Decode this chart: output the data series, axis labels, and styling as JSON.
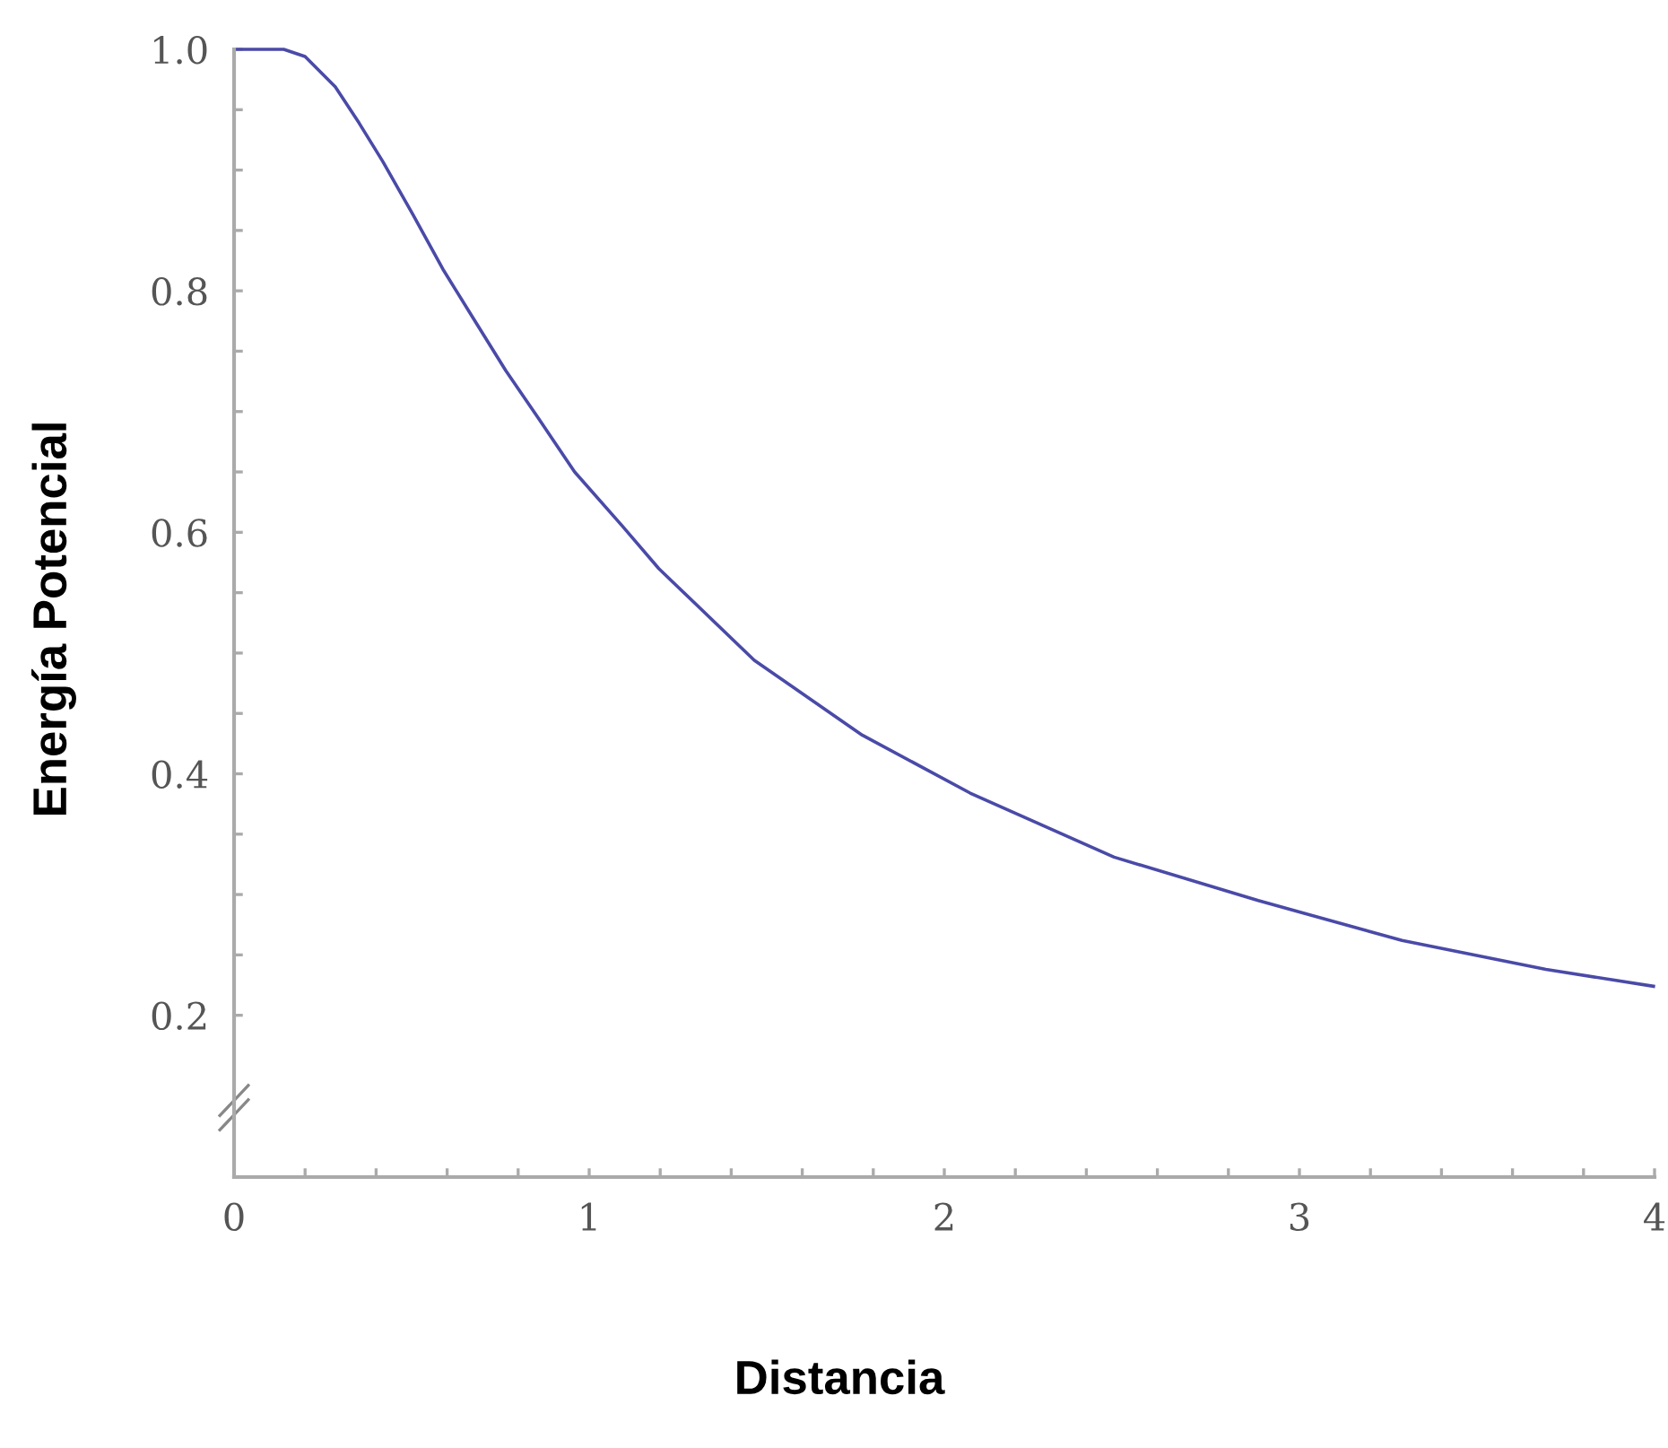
{
  "chart_data": {
    "type": "line",
    "xlabel": "Distancia",
    "ylabel": "Energía Potencial",
    "x": [
      0,
      0.14,
      0.2,
      0.285,
      0.352,
      0.419,
      0.504,
      0.588,
      0.672,
      0.765,
      0.858,
      0.959,
      1.094,
      1.196,
      1.465,
      1.769,
      2.073,
      2.478,
      2.884,
      3.289,
      3.694,
      3.997
    ],
    "series": [
      {
        "color": "#4a4aa8",
        "values": [
          1.0,
          1.0,
          0.994,
          0.969,
          0.939,
          0.907,
          0.863,
          0.818,
          0.778,
          0.734,
          0.694,
          0.65,
          0.605,
          0.57,
          0.494,
          0.432,
          0.384,
          0.331,
          0.295,
          0.262,
          0.238,
          0.224
        ]
      }
    ],
    "xlim": [
      0,
      4
    ],
    "ylim": [
      0.066,
      1.0
    ],
    "xticks": [
      0,
      {
        "value": 0.2,
        "label": null
      },
      {
        "value": 0.4,
        "label": null
      },
      {
        "value": 0.6,
        "label": null
      },
      {
        "value": 0.8,
        "label": null
      },
      1,
      {
        "value": 1.2,
        "label": null
      },
      {
        "value": 1.4,
        "label": null
      },
      {
        "value": 1.6,
        "label": null
      },
      {
        "value": 1.8,
        "label": null
      },
      2,
      {
        "value": 2.2,
        "label": null
      },
      {
        "value": 2.4,
        "label": null
      },
      {
        "value": 2.6,
        "label": null
      },
      {
        "value": 2.8,
        "label": null
      },
      3,
      {
        "value": 3.2,
        "label": null
      },
      {
        "value": 3.4,
        "label": null
      },
      {
        "value": 3.6,
        "label": null
      },
      {
        "value": 3.8,
        "label": null
      },
      4
    ],
    "yticks": [
      0.2,
      {
        "value": 0.25,
        "label": null
      },
      {
        "value": 0.3,
        "label": null
      },
      {
        "value": 0.35,
        "label": null
      },
      0.4,
      {
        "value": 0.45,
        "label": null
      },
      {
        "value": 0.5,
        "label": null
      },
      {
        "value": 0.55,
        "label": null
      },
      0.6,
      {
        "value": 0.65,
        "label": null
      },
      {
        "value": 0.7,
        "label": null
      },
      {
        "value": 0.75,
        "label": null
      },
      0.8,
      {
        "value": 0.85,
        "label": null
      },
      {
        "value": 0.9,
        "label": null
      },
      {
        "value": 0.95,
        "label": null
      },
      {
        "value": 1.0,
        "label": "1.0"
      }
    ],
    "grid": false,
    "legend": false,
    "marker": "none",
    "line_style": "solid"
  }
}
